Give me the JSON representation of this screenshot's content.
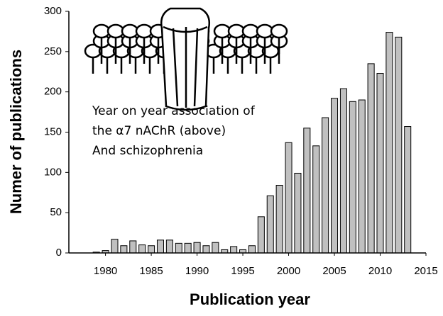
{
  "chart_data": {
    "type": "bar",
    "x_label": "Publication year",
    "y_label": "Numer of publications",
    "annotation": [
      "Year on year association of",
      "the α7 nAChR (above)",
      "And schizophrenia"
    ],
    "x": [
      1979,
      1980,
      1981,
      1982,
      1983,
      1984,
      1985,
      1986,
      1987,
      1988,
      1989,
      1990,
      1991,
      1992,
      1993,
      1994,
      1995,
      1996,
      1997,
      1998,
      1999,
      2000,
      2001,
      2002,
      2003,
      2004,
      2005,
      2006,
      2007,
      2008,
      2009,
      2010,
      2011,
      2012,
      2013
    ],
    "values": [
      1,
      3,
      17,
      9,
      15,
      10,
      9,
      16,
      16,
      12,
      12,
      13,
      9,
      13,
      4,
      8,
      4,
      9,
      45,
      71,
      84,
      137,
      99,
      155,
      133,
      168,
      192,
      204,
      188,
      190,
      235,
      223,
      274,
      268,
      157
    ],
    "color": "#c0c0c0",
    "xlim": [
      1976,
      2015
    ],
    "xticks": [
      1980,
      1985,
      1990,
      1995,
      2000,
      2005,
      2010,
      2015
    ],
    "ylim": [
      0,
      300
    ],
    "yticks": [
      0,
      50,
      100,
      150,
      200,
      250,
      300
    ]
  }
}
